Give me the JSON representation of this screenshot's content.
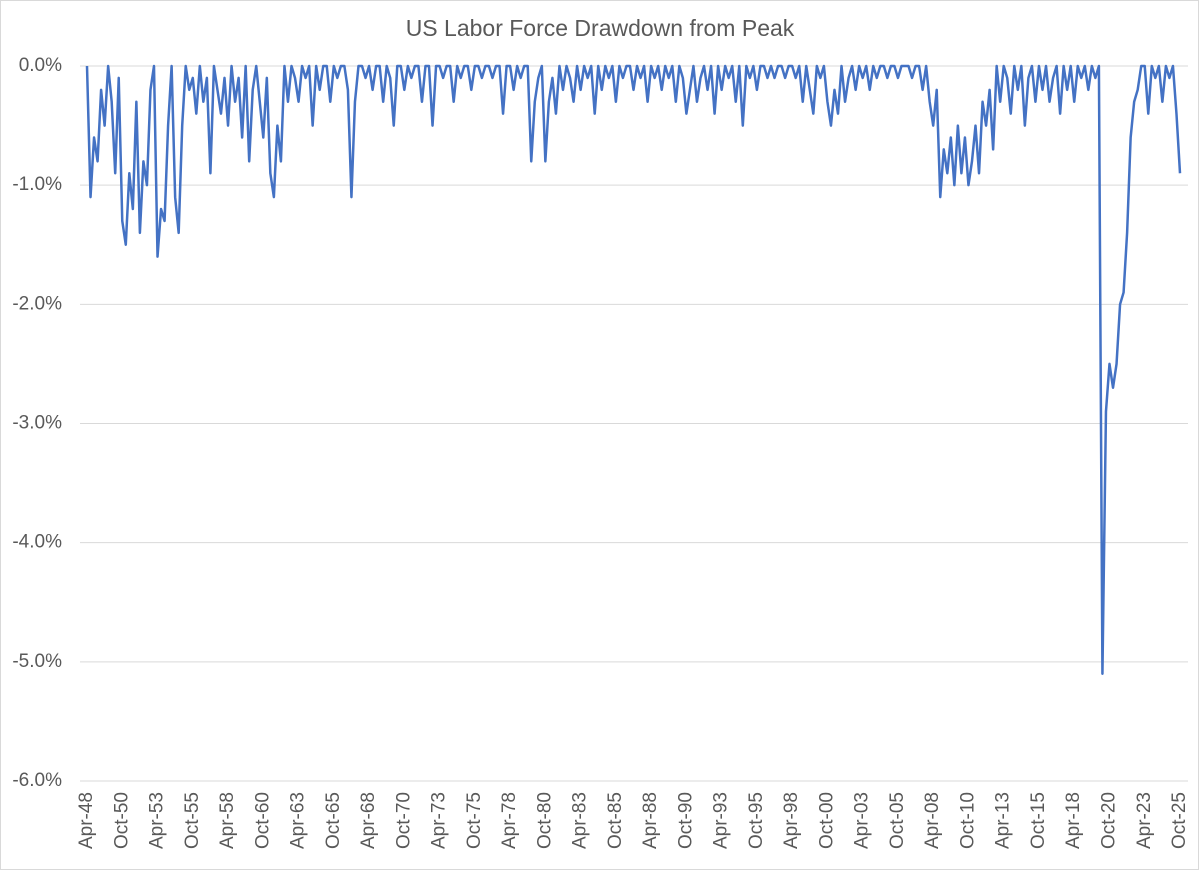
{
  "chart_data": {
    "type": "line",
    "title": "US Labor Force Drawdown from Peak",
    "categories": [
      "Apr-48",
      null,
      null,
      null,
      null,
      null,
      null,
      null,
      null,
      null,
      "Oct-50",
      null,
      null,
      null,
      null,
      null,
      null,
      null,
      null,
      null,
      "Apr-53",
      null,
      null,
      null,
      null,
      null,
      null,
      null,
      null,
      null,
      "Oct-55",
      null,
      null,
      null,
      null,
      null,
      null,
      null,
      null,
      null,
      "Apr-58",
      null,
      null,
      null,
      null,
      null,
      null,
      null,
      null,
      null,
      "Oct-60",
      null,
      null,
      null,
      null,
      null,
      null,
      null,
      null,
      null,
      "Apr-63",
      null,
      null,
      null,
      null,
      null,
      null,
      null,
      null,
      null,
      "Oct-65",
      null,
      null,
      null,
      null,
      null,
      null,
      null,
      null,
      null,
      "Apr-68",
      null,
      null,
      null,
      null,
      null,
      null,
      null,
      null,
      null,
      "Oct-70",
      null,
      null,
      null,
      null,
      null,
      null,
      null,
      null,
      null,
      "Apr-73",
      null,
      null,
      null,
      null,
      null,
      null,
      null,
      null,
      null,
      "Oct-75",
      null,
      null,
      null,
      null,
      null,
      null,
      null,
      null,
      null,
      "Apr-78",
      null,
      null,
      null,
      null,
      null,
      null,
      null,
      null,
      null,
      "Oct-80",
      null,
      null,
      null,
      null,
      null,
      null,
      null,
      null,
      null,
      "Apr-83",
      null,
      null,
      null,
      null,
      null,
      null,
      null,
      null,
      null,
      "Oct-85",
      null,
      null,
      null,
      null,
      null,
      null,
      null,
      null,
      null,
      "Apr-88",
      null,
      null,
      null,
      null,
      null,
      null,
      null,
      null,
      null,
      "Oct-90",
      null,
      null,
      null,
      null,
      null,
      null,
      null,
      null,
      null,
      "Apr-93",
      null,
      null,
      null,
      null,
      null,
      null,
      null,
      null,
      null,
      "Oct-95",
      null,
      null,
      null,
      null,
      null,
      null,
      null,
      null,
      null,
      "Apr-98",
      null,
      null,
      null,
      null,
      null,
      null,
      null,
      null,
      null,
      "Oct-00",
      null,
      null,
      null,
      null,
      null,
      null,
      null,
      null,
      null,
      "Apr-03",
      null,
      null,
      null,
      null,
      null,
      null,
      null,
      null,
      null,
      "Oct-05",
      null,
      null,
      null,
      null,
      null,
      null,
      null,
      null,
      null,
      "Apr-08",
      null,
      null,
      null,
      null,
      null,
      null,
      null,
      null,
      null,
      "Oct-10",
      null,
      null,
      null,
      null,
      null,
      null,
      null,
      null,
      null,
      "Apr-13",
      null,
      null,
      null,
      null,
      null,
      null,
      null,
      null,
      null,
      "Oct-15",
      null,
      null,
      null,
      null,
      null,
      null,
      null,
      null,
      null,
      "Apr-18",
      null,
      null,
      null,
      null,
      null,
      null,
      null,
      null,
      null,
      "Oct-20",
      null,
      null,
      null,
      null,
      null,
      null,
      null,
      null,
      null,
      "Apr-23",
      null,
      null,
      null,
      null,
      null,
      null,
      null,
      null,
      null,
      "Oct-25"
    ],
    "series": [
      {
        "name": "Drawdown",
        "color": "#4472c4",
        "values": [
          0,
          -1.1,
          -0.6,
          -0.8,
          -0.2,
          -0.5,
          0,
          -0.3,
          -0.9,
          -0.1,
          -1.3,
          -1.5,
          -0.9,
          -1.2,
          -0.3,
          -1.4,
          -0.8,
          -1.0,
          -0.2,
          0,
          -1.6,
          -1.2,
          -1.3,
          -0.5,
          0,
          -1.1,
          -1.4,
          -0.5,
          0,
          -0.2,
          -0.1,
          -0.4,
          0,
          -0.3,
          -0.1,
          -0.9,
          0,
          -0.2,
          -0.4,
          -0.1,
          -0.5,
          0,
          -0.3,
          -0.1,
          -0.6,
          0,
          -0.8,
          -0.2,
          0,
          -0.3,
          -0.6,
          -0.1,
          -0.9,
          -1.1,
          -0.5,
          -0.8,
          0,
          -0.3,
          0,
          -0.1,
          -0.3,
          0,
          -0.1,
          0,
          -0.5,
          0,
          -0.2,
          0,
          0,
          -0.3,
          0,
          -0.1,
          0,
          0,
          -0.2,
          -1.1,
          -0.3,
          0,
          0,
          -0.1,
          0,
          -0.2,
          0,
          0,
          -0.3,
          0,
          -0.1,
          -0.5,
          0,
          0,
          -0.2,
          0,
          -0.1,
          0,
          0,
          -0.3,
          0,
          0,
          -0.5,
          0,
          0,
          -0.1,
          0,
          0,
          -0.3,
          0,
          -0.1,
          0,
          0,
          -0.2,
          0,
          0,
          -0.1,
          0,
          0,
          -0.1,
          0,
          0,
          -0.4,
          0,
          0,
          -0.2,
          0,
          -0.1,
          0,
          0,
          -0.8,
          -0.3,
          -0.1,
          0,
          -0.8,
          -0.3,
          -0.1,
          -0.4,
          0,
          -0.2,
          0,
          -0.1,
          -0.3,
          0,
          -0.2,
          0,
          -0.1,
          0,
          -0.4,
          0,
          -0.2,
          0,
          -0.1,
          0,
          -0.3,
          0,
          -0.1,
          0,
          0,
          -0.2,
          0,
          -0.1,
          0,
          -0.3,
          0,
          -0.1,
          0,
          -0.2,
          0,
          -0.1,
          0,
          -0.3,
          0,
          -0.1,
          -0.4,
          -0.2,
          0,
          -0.3,
          -0.1,
          0,
          -0.2,
          0,
          -0.4,
          0,
          -0.2,
          0,
          -0.1,
          0,
          -0.3,
          0,
          -0.5,
          0,
          -0.1,
          0,
          -0.2,
          0,
          0,
          -0.1,
          0,
          -0.1,
          0,
          0,
          -0.1,
          0,
          0,
          -0.1,
          0,
          -0.3,
          0,
          -0.2,
          -0.4,
          0,
          -0.1,
          0,
          -0.3,
          -0.5,
          -0.2,
          -0.4,
          0,
          -0.3,
          -0.1,
          0,
          -0.2,
          0,
          -0.1,
          0,
          -0.2,
          0,
          -0.1,
          0,
          0,
          -0.1,
          0,
          0,
          -0.1,
          0,
          0,
          0,
          -0.1,
          0,
          0,
          -0.2,
          0,
          -0.3,
          -0.5,
          -0.2,
          -1.1,
          -0.7,
          -0.9,
          -0.6,
          -1.0,
          -0.5,
          -0.9,
          -0.6,
          -1.0,
          -0.8,
          -0.5,
          -0.9,
          -0.3,
          -0.5,
          -0.2,
          -0.7,
          0,
          -0.3,
          0,
          -0.1,
          -0.4,
          0,
          -0.2,
          0,
          -0.5,
          -0.1,
          0,
          -0.3,
          0,
          -0.2,
          0,
          -0.3,
          -0.1,
          0,
          -0.4,
          0,
          -0.2,
          0,
          -0.3,
          0,
          -0.1,
          0,
          -0.2,
          0,
          -0.1,
          0,
          -5.1,
          -2.9,
          -2.5,
          -2.7,
          -2.5,
          -2.0,
          -1.9,
          -1.4,
          -0.6,
          -0.3,
          -0.2,
          0,
          0,
          -0.4,
          0,
          -0.1,
          0,
          -0.3,
          0,
          -0.1,
          0,
          -0.4,
          -0.9
        ]
      }
    ],
    "ylim": [
      -6,
      0
    ],
    "yticks": [
      {
        "value": 0,
        "label": "0.0%"
      },
      {
        "value": -1,
        "label": "-1.0%"
      },
      {
        "value": -2,
        "label": "-2.0%"
      },
      {
        "value": -3,
        "label": "-3.0%"
      },
      {
        "value": -4,
        "label": "-4.0%"
      },
      {
        "value": -5,
        "label": "-5.0%"
      },
      {
        "value": -6,
        "label": "-6.0%"
      }
    ],
    "grid": true
  }
}
